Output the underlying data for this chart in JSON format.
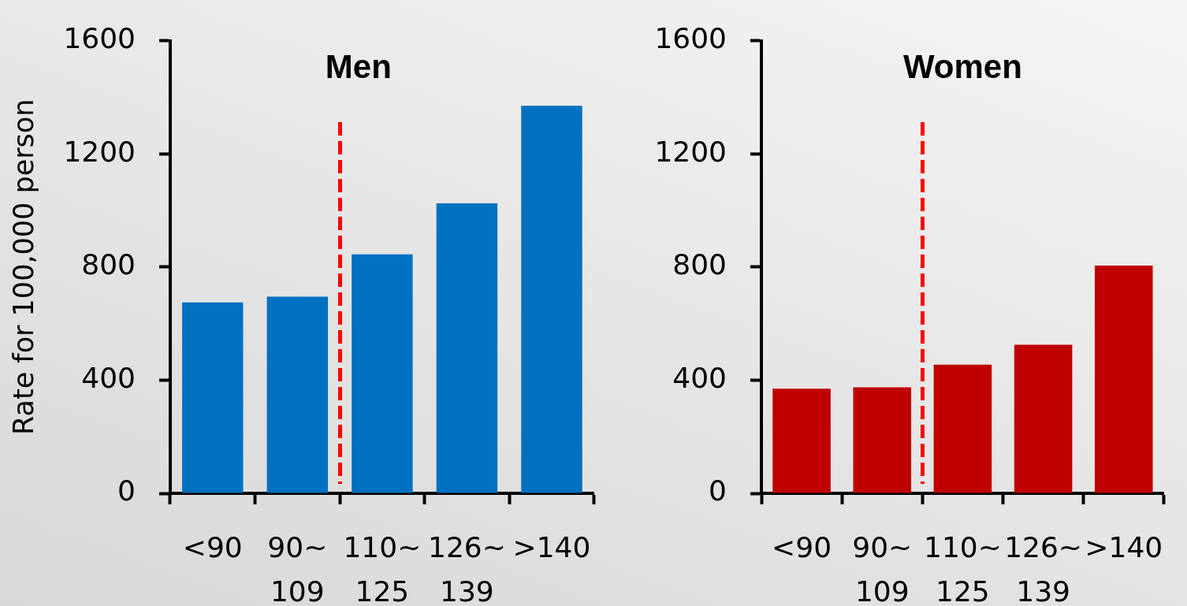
{
  "chart_data": [
    {
      "type": "bar",
      "title": "Men",
      "ylabel": "Rate for 100,000 person",
      "categories": [
        "<90",
        "90~ 109",
        "110~ 125",
        "126~ 139",
        ">140"
      ],
      "values": [
        675,
        695,
        845,
        1025,
        1370
      ],
      "color": "#0070c0",
      "ylim": [
        0,
        1600
      ],
      "yticks": [
        0,
        400,
        800,
        1200,
        1600
      ]
    },
    {
      "type": "bar",
      "title": "Women",
      "categories": [
        "<90",
        "90~ 109",
        "110~ 125",
        "126~ 139",
        ">140"
      ],
      "values": [
        370,
        375,
        455,
        525,
        805
      ],
      "color": "#c00000",
      "ylim": [
        0,
        1600
      ],
      "yticks": [
        0,
        400,
        800,
        1200,
        1600
      ]
    }
  ]
}
